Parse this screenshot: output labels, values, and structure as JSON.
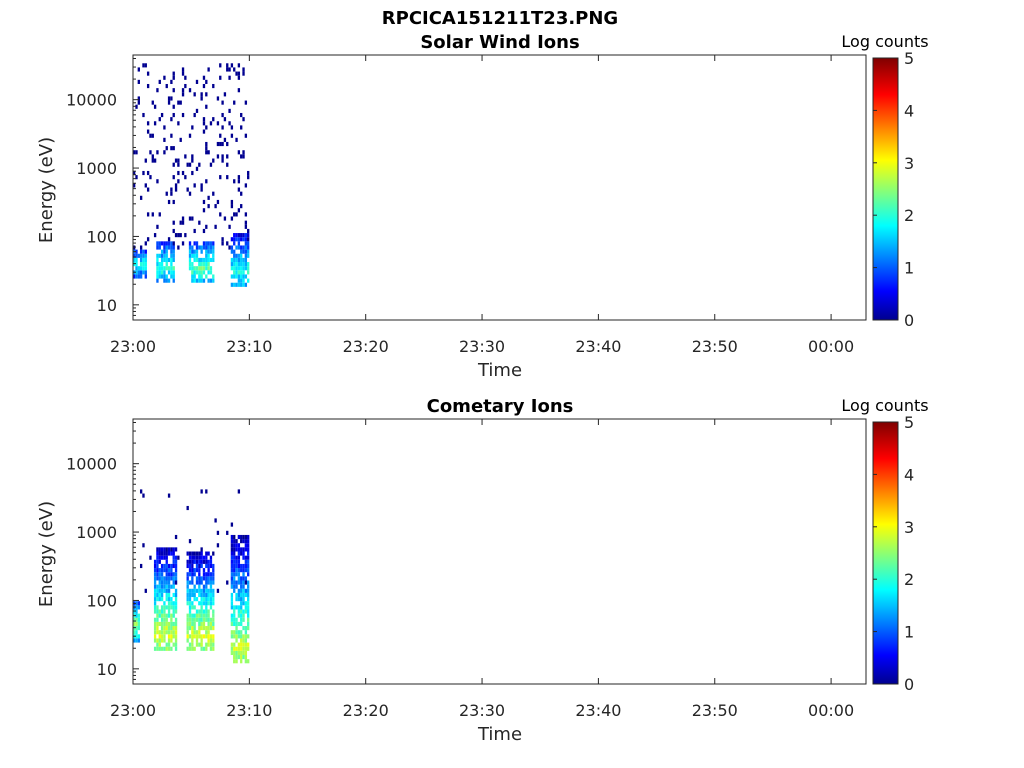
{
  "figure_title": "RPCICA151211T23.PNG",
  "chart_data": [
    {
      "type": "heatmap",
      "title": "Solar Wind Ions",
      "xlabel": "Time",
      "ylabel": "Energy (eV)",
      "x_ticks": [
        "23:00",
        "23:10",
        "23:20",
        "23:30",
        "23:40",
        "23:50",
        "00:00"
      ],
      "x_range_minutes": [
        0,
        63
      ],
      "y_ticks": [
        "10",
        "100",
        "1000",
        "10000"
      ],
      "y_scale": "log",
      "ylim": [
        6,
        45000
      ],
      "colorbar": {
        "label": "Log counts",
        "ticks": [
          "0",
          "1",
          "2",
          "3",
          "4",
          "5"
        ],
        "range": [
          0,
          5
        ],
        "colormap": "jet"
      },
      "data_time_span_minutes": [
        0,
        10
      ],
      "clusters": [
        {
          "t_start": 0.0,
          "t_end": 1.0,
          "e_low": 25,
          "e_high": 60,
          "peak_log_counts": 2.0
        },
        {
          "t_start": 1.8,
          "t_end": 3.6,
          "e_low": 20,
          "e_high": 90,
          "peak_log_counts": 2.1
        },
        {
          "t_start": 4.7,
          "t_end": 6.9,
          "e_low": 20,
          "e_high": 90,
          "peak_log_counts": 2.3
        },
        {
          "t_start": 8.4,
          "t_end": 10.0,
          "e_low": 18,
          "e_high": 120,
          "peak_log_counts": 2.0
        }
      ],
      "scatter_energy_range": [
        60,
        35000
      ]
    },
    {
      "type": "heatmap",
      "title": "Cometary Ions",
      "xlabel": "Time",
      "ylabel": "Energy (eV)",
      "x_ticks": [
        "23:00",
        "23:10",
        "23:20",
        "23:30",
        "23:40",
        "23:50",
        "00:00"
      ],
      "x_range_minutes": [
        0,
        63
      ],
      "y_ticks": [
        "10",
        "100",
        "1000",
        "10000"
      ],
      "y_scale": "log",
      "ylim": [
        6,
        45000
      ],
      "colorbar": {
        "label": "Log counts",
        "ticks": [
          "0",
          "1",
          "2",
          "3",
          "4",
          "5"
        ],
        "range": [
          0,
          5
        ],
        "colormap": "jet"
      },
      "data_time_span_minutes": [
        0,
        10
      ],
      "clusters": [
        {
          "t_start": 0.0,
          "t_end": 0.6,
          "e_low": 25,
          "e_high": 100,
          "peak_log_counts": 2.6
        },
        {
          "t_start": 1.7,
          "t_end": 3.8,
          "e_low": 18,
          "e_high": 600,
          "peak_log_counts": 2.9
        },
        {
          "t_start": 4.6,
          "t_end": 7.0,
          "e_low": 18,
          "e_high": 500,
          "peak_log_counts": 2.9
        },
        {
          "t_start": 8.3,
          "t_end": 10.0,
          "e_low": 12,
          "e_high": 950,
          "peak_log_counts": 2.8
        }
      ],
      "scatter_energy_range": [
        100,
        4500
      ]
    }
  ]
}
